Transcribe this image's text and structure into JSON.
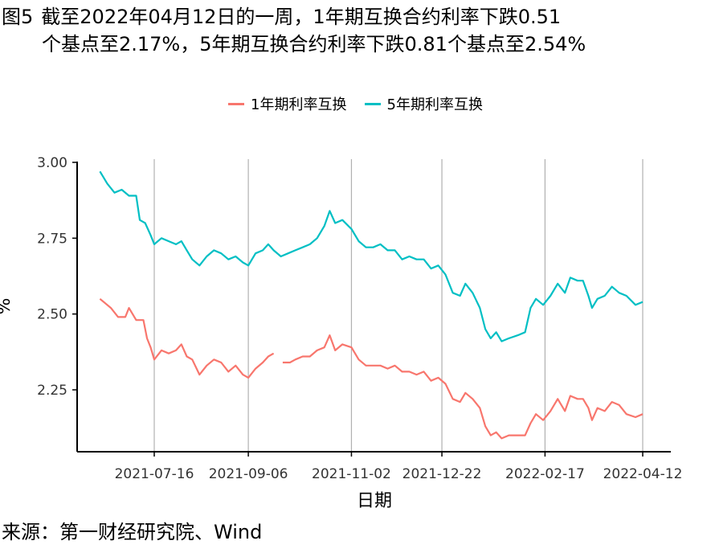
{
  "header": {
    "figure_label": "图5",
    "title_line1": "截至2022年04月12日的一周，1年期互换合约利率下跌0.51",
    "title_line2": "个基点至2.17%，5年期互换合约利率下跌0.81个基点至2.54%"
  },
  "source_text": "来源：第一财经研究院、Wind",
  "chart_data": {
    "type": "line",
    "title": "截至2022年04月12日的一周，1年期互换合约利率下跌0.51个基点至2.17%，5年期互换合约利率下跌0.81个基点至2.54%",
    "xlabel": "日期",
    "ylabel": "%",
    "x_range": [
      "2021-06-01",
      "2022-04-15"
    ],
    "ylim": [
      2.03,
      3.02
    ],
    "y_ticks": [
      2.25,
      2.5,
      2.75,
      3.0
    ],
    "y_tick_labels": [
      "2.25",
      "2.50",
      "2.75",
      "3.00"
    ],
    "x_ticks": [
      "2021-07-16",
      "2021-09-06",
      "2021-11-02",
      "2021-12-22",
      "2022-02-17",
      "2022-04-12"
    ],
    "x_tick_labels": [
      "2021-07-16",
      "2021-09-06",
      "2021-11-02",
      "2021-12-22",
      "2022-02-17",
      "2022-04-12"
    ],
    "grid": "vertical lines at x ticks",
    "legend_position": "top",
    "series": [
      {
        "name": "1年期利率互换",
        "color": "#F8766D",
        "points": [
          [
            "2021-06-16",
            2.55
          ],
          [
            "2021-06-22",
            2.52
          ],
          [
            "2021-06-26",
            2.49
          ],
          [
            "2021-06-30",
            2.49
          ],
          [
            "2021-07-02",
            2.52
          ],
          [
            "2021-07-06",
            2.48
          ],
          [
            "2021-07-10",
            2.48
          ],
          [
            "2021-07-12",
            2.42
          ],
          [
            "2021-07-14",
            2.39
          ],
          [
            "2021-07-16",
            2.35
          ],
          [
            "2021-07-20",
            2.38
          ],
          [
            "2021-07-24",
            2.37
          ],
          [
            "2021-07-28",
            2.38
          ],
          [
            "2021-07-31",
            2.4
          ],
          [
            "2021-08-03",
            2.36
          ],
          [
            "2021-08-06",
            2.35
          ],
          [
            "2021-08-10",
            2.3
          ],
          [
            "2021-08-14",
            2.33
          ],
          [
            "2021-08-18",
            2.35
          ],
          [
            "2021-08-22",
            2.34
          ],
          [
            "2021-08-26",
            2.31
          ],
          [
            "2021-08-30",
            2.33
          ],
          [
            "2021-09-03",
            2.3
          ],
          [
            "2021-09-06",
            2.29
          ],
          [
            "2021-09-10",
            2.32
          ],
          [
            "2021-09-14",
            2.34
          ],
          [
            "2021-09-17",
            2.36
          ],
          [
            "2021-09-20",
            2.37
          ],
          null,
          [
            "2021-09-25",
            2.34
          ],
          [
            "2021-09-29",
            2.34
          ],
          [
            "2021-10-02",
            2.35
          ],
          [
            "2021-10-06",
            2.36
          ],
          [
            "2021-10-10",
            2.36
          ],
          [
            "2021-10-14",
            2.38
          ],
          [
            "2021-10-18",
            2.39
          ],
          [
            "2021-10-21",
            2.43
          ],
          [
            "2021-10-24",
            2.38
          ],
          [
            "2021-10-28",
            2.4
          ],
          [
            "2021-11-02",
            2.39
          ],
          [
            "2021-11-06",
            2.35
          ],
          [
            "2021-11-10",
            2.33
          ],
          [
            "2021-11-14",
            2.33
          ],
          [
            "2021-11-18",
            2.33
          ],
          [
            "2021-11-22",
            2.32
          ],
          [
            "2021-11-26",
            2.33
          ],
          [
            "2021-11-30",
            2.31
          ],
          [
            "2021-12-04",
            2.31
          ],
          [
            "2021-12-08",
            2.3
          ],
          [
            "2021-12-12",
            2.31
          ],
          [
            "2021-12-16",
            2.28
          ],
          [
            "2021-12-20",
            2.29
          ],
          [
            "2021-12-24",
            2.27
          ],
          [
            "2021-12-28",
            2.22
          ],
          [
            "2022-01-01",
            2.21
          ],
          [
            "2022-01-04",
            2.24
          ],
          [
            "2022-01-08",
            2.22
          ],
          [
            "2022-01-12",
            2.19
          ],
          [
            "2022-01-15",
            2.13
          ],
          [
            "2022-01-18",
            2.1
          ],
          [
            "2022-01-21",
            2.11
          ],
          [
            "2022-01-24",
            2.09
          ],
          [
            "2022-01-28",
            2.1
          ],
          [
            "2022-02-02",
            2.1
          ],
          [
            "2022-02-06",
            2.1
          ],
          [
            "2022-02-09",
            2.14
          ],
          [
            "2022-02-12",
            2.17
          ],
          [
            "2022-02-16",
            2.15
          ],
          [
            "2022-02-20",
            2.18
          ],
          [
            "2022-02-24",
            2.22
          ],
          [
            "2022-02-28",
            2.18
          ],
          [
            "2022-03-03",
            2.23
          ],
          [
            "2022-03-07",
            2.22
          ],
          [
            "2022-03-10",
            2.22
          ],
          [
            "2022-03-13",
            2.19
          ],
          [
            "2022-03-15",
            2.15
          ],
          [
            "2022-03-18",
            2.19
          ],
          [
            "2022-03-22",
            2.18
          ],
          [
            "2022-03-26",
            2.21
          ],
          [
            "2022-03-30",
            2.2
          ],
          [
            "2022-04-03",
            2.17
          ],
          [
            "2022-04-08",
            2.16
          ],
          [
            "2022-04-12",
            2.17
          ]
        ]
      },
      {
        "name": "5年期利率互换",
        "color": "#00BFC4",
        "points": [
          [
            "2021-06-16",
            2.97
          ],
          [
            "2021-06-20",
            2.93
          ],
          [
            "2021-06-24",
            2.9
          ],
          [
            "2021-06-28",
            2.91
          ],
          [
            "2021-07-02",
            2.89
          ],
          [
            "2021-07-06",
            2.89
          ],
          [
            "2021-07-08",
            2.81
          ],
          [
            "2021-07-11",
            2.8
          ],
          [
            "2021-07-14",
            2.76
          ],
          [
            "2021-07-16",
            2.73
          ],
          [
            "2021-07-20",
            2.75
          ],
          [
            "2021-07-24",
            2.74
          ],
          [
            "2021-07-28",
            2.73
          ],
          [
            "2021-07-31",
            2.74
          ],
          [
            "2021-08-03",
            2.71
          ],
          [
            "2021-08-06",
            2.68
          ],
          [
            "2021-08-10",
            2.66
          ],
          [
            "2021-08-14",
            2.69
          ],
          [
            "2021-08-18",
            2.71
          ],
          [
            "2021-08-22",
            2.7
          ],
          [
            "2021-08-26",
            2.68
          ],
          [
            "2021-08-30",
            2.69
          ],
          [
            "2021-09-03",
            2.67
          ],
          [
            "2021-09-06",
            2.66
          ],
          [
            "2021-09-10",
            2.7
          ],
          [
            "2021-09-14",
            2.71
          ],
          [
            "2021-09-17",
            2.73
          ],
          [
            "2021-09-20",
            2.71
          ],
          [
            "2021-09-24",
            2.69
          ],
          [
            "2021-09-28",
            2.7
          ],
          [
            "2021-10-02",
            2.71
          ],
          [
            "2021-10-06",
            2.72
          ],
          [
            "2021-10-10",
            2.73
          ],
          [
            "2021-10-14",
            2.75
          ],
          [
            "2021-10-18",
            2.79
          ],
          [
            "2021-10-21",
            2.84
          ],
          [
            "2021-10-24",
            2.8
          ],
          [
            "2021-10-28",
            2.81
          ],
          [
            "2021-11-02",
            2.78
          ],
          [
            "2021-11-06",
            2.74
          ],
          [
            "2021-11-10",
            2.72
          ],
          [
            "2021-11-14",
            2.72
          ],
          [
            "2021-11-18",
            2.73
          ],
          [
            "2021-11-22",
            2.71
          ],
          [
            "2021-11-26",
            2.71
          ],
          [
            "2021-11-30",
            2.68
          ],
          [
            "2021-12-04",
            2.69
          ],
          [
            "2021-12-08",
            2.68
          ],
          [
            "2021-12-12",
            2.68
          ],
          [
            "2021-12-16",
            2.65
          ],
          [
            "2021-12-20",
            2.66
          ],
          [
            "2021-12-24",
            2.63
          ],
          [
            "2021-12-28",
            2.57
          ],
          [
            "2022-01-01",
            2.56
          ],
          [
            "2022-01-04",
            2.6
          ],
          [
            "2022-01-08",
            2.57
          ],
          [
            "2022-01-12",
            2.52
          ],
          [
            "2022-01-15",
            2.45
          ],
          [
            "2022-01-18",
            2.42
          ],
          [
            "2022-01-21",
            2.44
          ],
          [
            "2022-01-24",
            2.41
          ],
          [
            "2022-01-28",
            2.42
          ],
          [
            "2022-02-02",
            2.43
          ],
          [
            "2022-02-06",
            2.44
          ],
          [
            "2022-02-09",
            2.52
          ],
          [
            "2022-02-12",
            2.55
          ],
          [
            "2022-02-16",
            2.53
          ],
          [
            "2022-02-20",
            2.56
          ],
          [
            "2022-02-24",
            2.6
          ],
          [
            "2022-02-28",
            2.57
          ],
          [
            "2022-03-03",
            2.62
          ],
          [
            "2022-03-07",
            2.61
          ],
          [
            "2022-03-10",
            2.61
          ],
          [
            "2022-03-13",
            2.56
          ],
          [
            "2022-03-15",
            2.52
          ],
          [
            "2022-03-18",
            2.55
          ],
          [
            "2022-03-22",
            2.56
          ],
          [
            "2022-03-26",
            2.59
          ],
          [
            "2022-03-30",
            2.57
          ],
          [
            "2022-04-03",
            2.56
          ],
          [
            "2022-04-08",
            2.53
          ],
          [
            "2022-04-12",
            2.54
          ]
        ]
      }
    ]
  }
}
